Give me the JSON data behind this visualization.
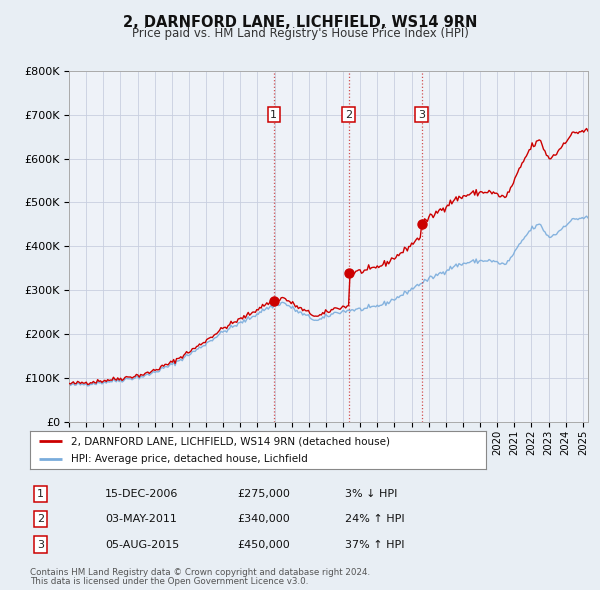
{
  "title": "2, DARNFORD LANE, LICHFIELD, WS14 9RN",
  "subtitle": "Price paid vs. HM Land Registry's House Price Index (HPI)",
  "hpi_label": "HPI: Average price, detached house, Lichfield",
  "property_label": "2, DARNFORD LANE, LICHFIELD, WS14 9RN (detached house)",
  "property_color": "#cc0000",
  "hpi_color": "#7aacdc",
  "background_color": "#e8eef4",
  "plot_bg_color": "#eef2f8",
  "grid_color": "#c8cfe0",
  "transactions": [
    {
      "num": 1,
      "date": "15-DEC-2006",
      "price": 275000,
      "hpi_pct": "3%",
      "direction": "↓"
    },
    {
      "num": 2,
      "date": "03-MAY-2011",
      "price": 340000,
      "hpi_pct": "24%",
      "direction": "↑"
    },
    {
      "num": 3,
      "date": "05-AUG-2015",
      "price": 450000,
      "hpi_pct": "37%",
      "direction": "↑"
    }
  ],
  "transaction_dates_decimal": [
    2006.958,
    2011.336,
    2015.589
  ],
  "ylim": [
    0,
    800000
  ],
  "yticks": [
    0,
    100000,
    200000,
    300000,
    400000,
    500000,
    600000,
    700000,
    800000
  ],
  "xlim_start": 1995.0,
  "xlim_end": 2025.3,
  "footer_line1": "Contains HM Land Registry data © Crown copyright and database right 2024.",
  "footer_line2": "This data is licensed under the Open Government Licence v3.0."
}
